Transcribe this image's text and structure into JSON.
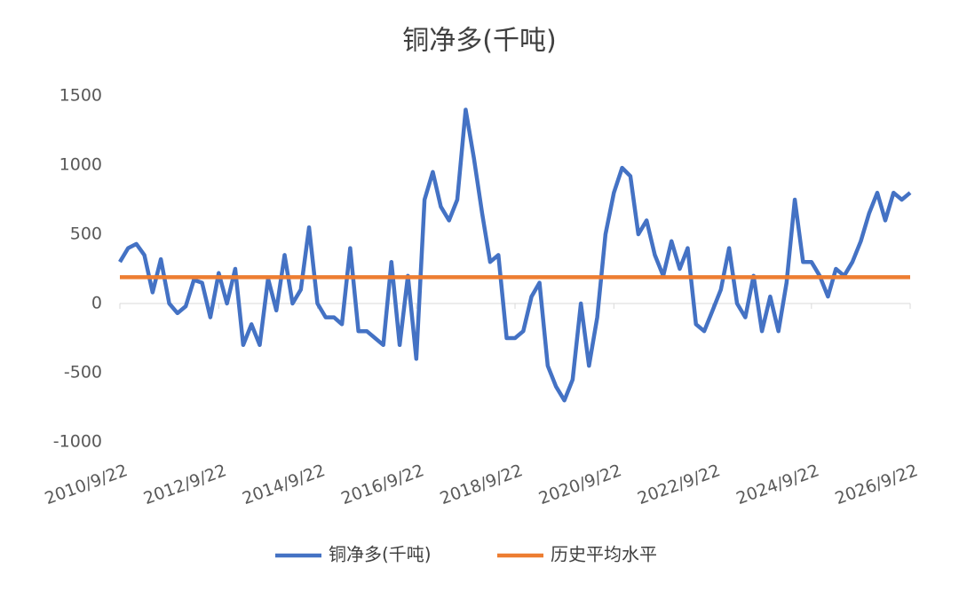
{
  "chart_data": {
    "type": "line",
    "title": "铜净多(千吨)",
    "x": [
      "2010/9/22",
      "2010/11/22",
      "2011/1/22",
      "2011/3/22",
      "2011/5/22",
      "2011/7/22",
      "2011/9/22",
      "2011/11/22",
      "2012/1/22",
      "2012/3/22",
      "2012/5/22",
      "2012/7/22",
      "2012/9/22",
      "2012/11/22",
      "2013/1/22",
      "2013/3/22",
      "2013/5/22",
      "2013/7/22",
      "2013/9/22",
      "2013/11/22",
      "2014/1/22",
      "2014/3/22",
      "2014/5/22",
      "2014/7/22",
      "2014/9/22",
      "2014/11/22",
      "2015/1/22",
      "2015/3/22",
      "2015/5/22",
      "2015/7/22",
      "2015/9/22",
      "2015/11/22",
      "2016/1/22",
      "2016/3/22",
      "2016/5/22",
      "2016/7/22",
      "2016/9/22",
      "2016/11/22",
      "2017/1/22",
      "2017/3/22",
      "2017/5/22",
      "2017/7/22",
      "2017/9/22",
      "2017/11/22",
      "2018/1/22",
      "2018/3/22",
      "2018/5/22",
      "2018/7/22",
      "2018/9/22",
      "2018/11/22",
      "2019/1/22",
      "2019/3/22",
      "2019/5/22",
      "2019/7/22",
      "2019/9/22",
      "2019/11/22",
      "2020/1/22",
      "2020/3/22",
      "2020/5/22",
      "2020/7/22",
      "2020/9/22",
      "2020/11/22",
      "2021/1/22",
      "2021/3/22",
      "2021/5/22",
      "2021/7/22",
      "2021/9/22",
      "2021/11/22",
      "2022/1/22",
      "2022/3/22",
      "2022/5/22",
      "2022/7/22",
      "2022/9/22",
      "2022/11/22",
      "2023/1/22",
      "2023/3/22",
      "2023/5/22",
      "2023/7/22",
      "2023/9/22",
      "2023/11/22",
      "2024/1/22",
      "2024/3/22",
      "2024/5/22",
      "2024/7/22",
      "2024/9/22",
      "2024/11/22",
      "2025/1/22",
      "2025/3/22",
      "2025/5/22",
      "2025/7/22",
      "2025/9/22",
      "2025/11/22",
      "2026/1/22",
      "2026/3/22",
      "2026/5/22",
      "2026/7/22",
      "2026/9/22"
    ],
    "series": [
      {
        "name": "铜净多(千吨)",
        "color": "#4472c4",
        "values": [
          300,
          400,
          430,
          350,
          80,
          320,
          0,
          -70,
          -20,
          170,
          150,
          -100,
          220,
          0,
          250,
          -300,
          -150,
          -300,
          180,
          -50,
          350,
          0,
          100,
          550,
          0,
          -100,
          -100,
          -150,
          400,
          -200,
          -200,
          -250,
          -300,
          300,
          -300,
          200,
          -400,
          750,
          950,
          700,
          600,
          750,
          1400,
          1050,
          650,
          300,
          350,
          -250,
          -250,
          -200,
          50,
          150,
          -450,
          -600,
          -700,
          -550,
          0,
          -450,
          -100,
          500,
          800,
          980,
          920,
          500,
          600,
          350,
          200,
          450,
          250,
          400,
          -150,
          -200,
          -50,
          100,
          400,
          0,
          -100,
          200,
          -200,
          50,
          -200,
          150,
          750,
          300,
          300,
          200,
          50,
          250,
          200,
          300,
          450,
          650,
          800,
          600,
          800,
          750,
          800
        ]
      },
      {
        "name": "历史平均水平",
        "color": "#ed7d31",
        "x": [
          "2010/9/22",
          "2026/9/22"
        ],
        "values": [
          190,
          190
        ]
      }
    ],
    "xlim": [
      "2010/9/22",
      "2026/9/22"
    ],
    "xticks": [
      "2010/9/22",
      "2012/9/22",
      "2014/9/22",
      "2016/9/22",
      "2018/9/22",
      "2020/9/22",
      "2022/9/22",
      "2024/9/22",
      "2026/9/22"
    ],
    "ylim": [
      -1000,
      1500
    ],
    "yticks": [
      -1000,
      -500,
      0,
      500,
      1000,
      1500
    ],
    "grid": false,
    "legend": "bottom"
  }
}
